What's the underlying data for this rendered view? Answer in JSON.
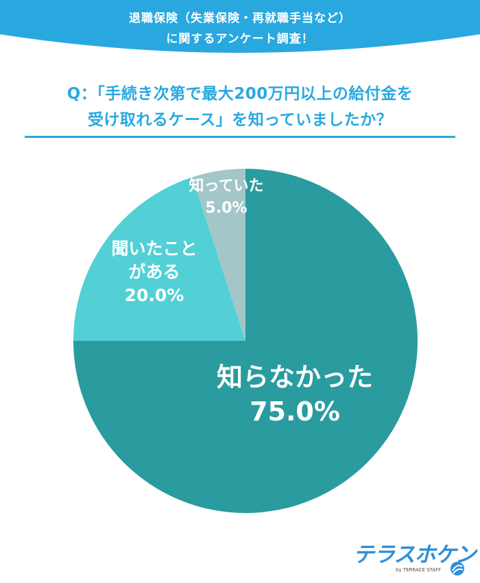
{
  "header": {
    "line1": "退職保険（失業保険・再就職手当など）",
    "line2": "に関するアンケート調査！",
    "bg_color": "#29a8e0"
  },
  "question": {
    "line1": "Q：「手続き次第で最大200万円以上の給付金を",
    "line2": "受け取れるケース」を知っていましたか？",
    "color": "#29a8e0"
  },
  "chart_data": {
    "type": "pie",
    "start": "12 o'clock",
    "direction": "clockwise",
    "slices": [
      {
        "label_lines": [
          "知らなかった"
        ],
        "value_label": "75.0%",
        "value": 75.0,
        "color": "#2a9b9e"
      },
      {
        "label_lines": [
          "聞いたこと",
          "がある"
        ],
        "value_label": "20.0%",
        "value": 20.0,
        "color": "#52d0d6"
      },
      {
        "label_lines": [
          "知っていた"
        ],
        "value_label": "5.0%",
        "value": 5.0,
        "color": "#a3c6c8"
      }
    ]
  },
  "logo": {
    "text": "テラスホケン",
    "sub": "by TERRACE STAFF",
    "color": "#2f8fd8"
  }
}
